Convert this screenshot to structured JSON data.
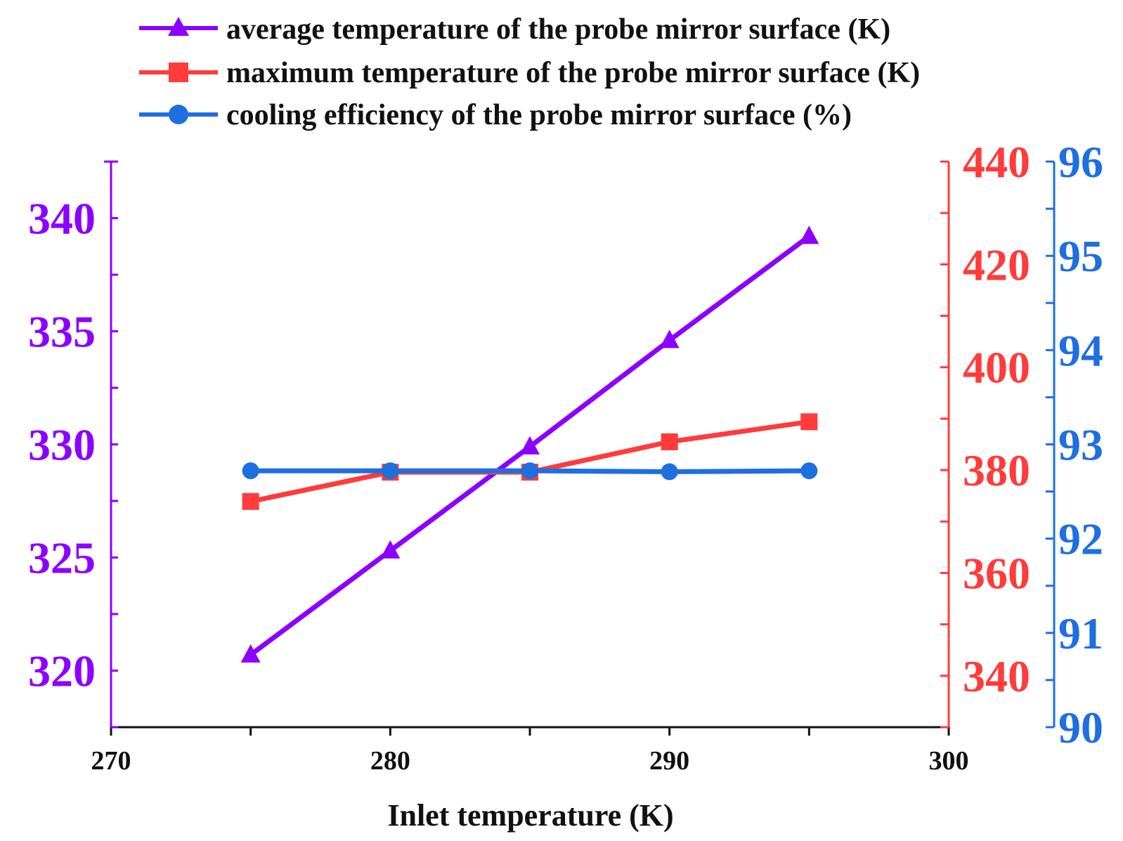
{
  "chart_data": {
    "type": "line",
    "x": [
      275,
      280,
      285,
      290,
      295
    ],
    "xlabel": "Inlet temperature (K)",
    "xlim": [
      270,
      300
    ],
    "xticks": [
      270,
      280,
      290,
      300
    ],
    "series": [
      {
        "name": "average temperature of the probe mirror surface (K)",
        "values": [
          320.7,
          325.3,
          329.9,
          334.6,
          339.2
        ],
        "color": "#8B00FF",
        "marker": "triangle",
        "axis": "left"
      },
      {
        "name": "maximum temperature of the probe mirror surface (K)",
        "values": [
          373.9,
          379.6,
          379.6,
          385.5,
          389.4
        ],
        "color": "#FF3B3B",
        "marker": "square",
        "axis": "right-inner"
      },
      {
        "name": "cooling efficiency of the probe mirror surface (%)",
        "values": [
          92.72,
          92.72,
          92.72,
          92.71,
          92.72
        ],
        "color": "#1E6FDF",
        "marker": "circle",
        "axis": "right-outer"
      }
    ],
    "axes": {
      "left": {
        "ylim": [
          317.5,
          342.5
        ],
        "ticks": [
          320,
          325,
          330,
          335,
          340
        ],
        "tick_labels": [
          "320",
          "325",
          "330",
          "335",
          "340"
        ],
        "color": "#8B00FF"
      },
      "right_inner": {
        "ylim": [
          330,
          440
        ],
        "ticks": [
          340,
          360,
          380,
          400,
          420,
          440
        ],
        "tick_labels": [
          "340",
          "360",
          "380",
          "400",
          "420",
          "440"
        ],
        "color": "#FF3B3B"
      },
      "right_outer": {
        "ylim": [
          90,
          96
        ],
        "ticks": [
          90,
          91,
          92,
          93,
          94,
          95,
          96
        ],
        "tick_labels": [
          "90",
          "91",
          "92",
          "93",
          "94",
          "95",
          "96"
        ],
        "color": "#1E6FDF"
      }
    },
    "legend": "top"
  }
}
